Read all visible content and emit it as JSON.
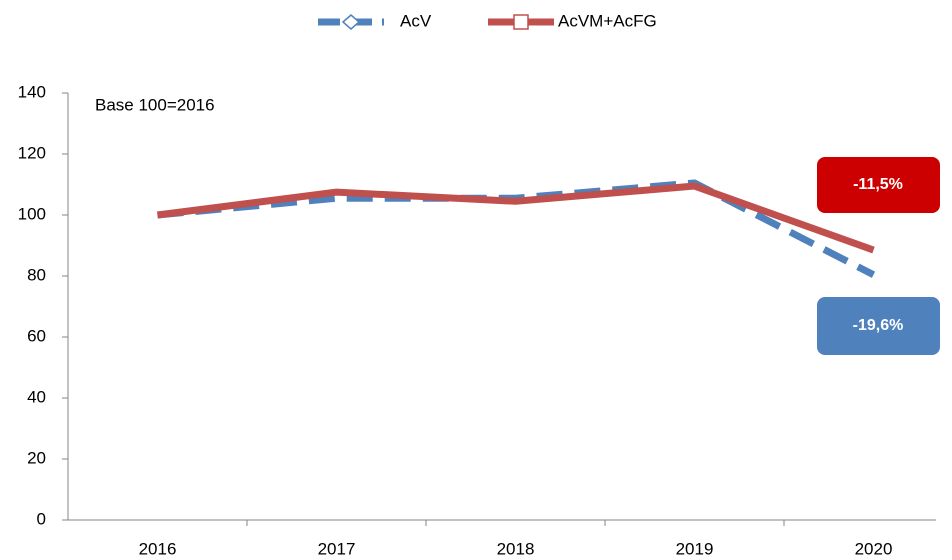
{
  "chart_data": {
    "type": "line",
    "categories": [
      "2016",
      "2017",
      "2018",
      "2019",
      "2020"
    ],
    "series": [
      {
        "name": "AcV",
        "color": "#4f81bd",
        "dashed": true,
        "marker": "diamond",
        "values": [
          100,
          105.5,
          105.5,
          110.5,
          80.4
        ]
      },
      {
        "name": "AcVM+AcFG",
        "color": "#c0504d",
        "dashed": false,
        "marker": "square",
        "values": [
          100,
          107.5,
          104.5,
          109.5,
          88.5
        ]
      }
    ],
    "ylim": [
      0,
      140
    ],
    "yticks": [
      0,
      20,
      40,
      60,
      80,
      100,
      120,
      140
    ],
    "grid": false,
    "legend": "top",
    "annotations": [
      {
        "text": "Base 100=2016"
      },
      {
        "text": "-11,5%",
        "color": "#cc0000"
      },
      {
        "text": "-19,6%",
        "color": "#4f81bd"
      }
    ]
  }
}
